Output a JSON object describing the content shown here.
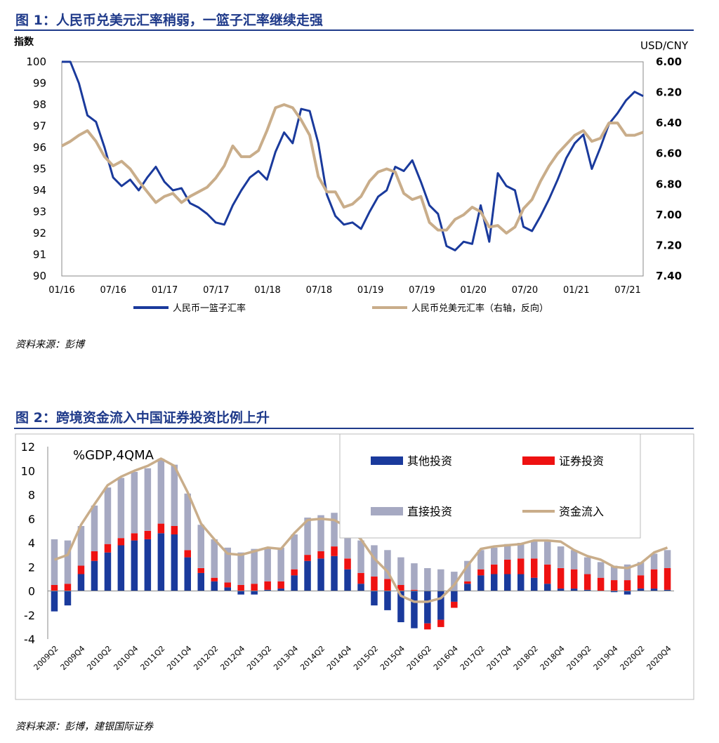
{
  "figure1": {
    "title": "图 1：人民币兑美元汇率稍弱，一篮子汇率继续走强",
    "source": "资料来源：彭博",
    "chart_data": {
      "type": "line",
      "left_axis_label": "指数",
      "right_axis_label": "USD/CNY",
      "left_ylim": [
        90,
        100
      ],
      "right_ylim": [
        6.0,
        7.4
      ],
      "right_axis_reversed": true,
      "left_ticks": [
        "100",
        "99",
        "98",
        "97",
        "96",
        "95",
        "94",
        "93",
        "92",
        "91",
        "90"
      ],
      "right_ticks": [
        "6.00",
        "6.20",
        "6.40",
        "6.60",
        "6.80",
        "7.00",
        "7.20",
        "7.40"
      ],
      "x_ticks": [
        "01/16",
        "07/16",
        "01/17",
        "07/17",
        "01/18",
        "07/18",
        "01/19",
        "07/19",
        "01/20",
        "07/20",
        "01/21",
        "07/21"
      ],
      "grid": false,
      "legend_position": "bottom",
      "series": [
        {
          "name": "人民币一篮子汇率",
          "axis": "left",
          "color": "#1a3a9c",
          "x": [
            "01/16",
            "02/16",
            "03/16",
            "04/16",
            "05/16",
            "06/16",
            "07/16",
            "08/16",
            "09/16",
            "10/16",
            "11/16",
            "12/16",
            "01/17",
            "02/17",
            "03/17",
            "04/17",
            "05/17",
            "06/17",
            "07/17",
            "08/17",
            "09/17",
            "10/17",
            "11/17",
            "12/17",
            "01/18",
            "02/18",
            "03/18",
            "04/18",
            "05/18",
            "06/18",
            "07/18",
            "08/18",
            "09/18",
            "10/18",
            "11/18",
            "12/18",
            "01/19",
            "02/19",
            "03/19",
            "04/19",
            "05/19",
            "06/19",
            "07/19",
            "08/19",
            "09/19",
            "10/19",
            "11/19",
            "12/19",
            "01/20",
            "02/20",
            "03/20",
            "04/20",
            "05/20",
            "06/20",
            "07/20",
            "08/20",
            "09/20",
            "10/20",
            "11/20",
            "12/20",
            "01/21",
            "02/21",
            "03/21",
            "04/21",
            "05/21",
            "06/21",
            "07/21",
            "08/21",
            "09/21"
          ],
          "values": [
            100.5,
            100.0,
            99.0,
            97.5,
            97.2,
            96.0,
            94.6,
            94.2,
            94.5,
            94.0,
            94.6,
            95.1,
            94.4,
            94.0,
            94.1,
            93.4,
            93.2,
            92.9,
            92.5,
            92.4,
            93.3,
            94.0,
            94.6,
            94.9,
            94.5,
            95.8,
            96.7,
            96.2,
            97.8,
            97.7,
            96.2,
            93.8,
            92.8,
            92.4,
            92.5,
            92.2,
            93.0,
            93.7,
            94.0,
            95.1,
            94.9,
            95.4,
            94.4,
            93.3,
            92.9,
            91.4,
            91.2,
            91.6,
            91.5,
            93.3,
            91.6,
            94.8,
            94.2,
            94.0,
            92.3,
            92.1,
            92.8,
            93.6,
            94.5,
            95.5,
            96.2,
            96.6,
            95.0,
            96.0,
            97.1,
            97.6,
            98.2,
            98.6,
            98.4
          ]
        },
        {
          "name": "人民币兑美元汇率（右轴，反向）",
          "axis": "right",
          "color": "#c9ad8a",
          "x": [
            "01/16",
            "02/16",
            "03/16",
            "04/16",
            "05/16",
            "06/16",
            "07/16",
            "08/16",
            "09/16",
            "10/16",
            "11/16",
            "12/16",
            "01/17",
            "02/17",
            "03/17",
            "04/17",
            "05/17",
            "06/17",
            "07/17",
            "08/17",
            "09/17",
            "10/17",
            "11/17",
            "12/17",
            "01/18",
            "02/18",
            "03/18",
            "04/18",
            "05/18",
            "06/18",
            "07/18",
            "08/18",
            "09/18",
            "10/18",
            "11/18",
            "12/18",
            "01/19",
            "02/19",
            "03/19",
            "04/19",
            "05/19",
            "06/19",
            "07/19",
            "08/19",
            "09/19",
            "10/19",
            "11/19",
            "12/19",
            "01/20",
            "02/20",
            "03/20",
            "04/20",
            "05/20",
            "06/20",
            "07/20",
            "08/20",
            "09/20",
            "10/20",
            "11/20",
            "12/20",
            "01/21",
            "02/21",
            "03/21",
            "04/21",
            "05/21",
            "06/21",
            "07/21",
            "08/21",
            "09/21"
          ],
          "values": [
            6.55,
            6.52,
            6.48,
            6.45,
            6.52,
            6.62,
            6.68,
            6.65,
            6.7,
            6.78,
            6.85,
            6.92,
            6.88,
            6.86,
            6.92,
            6.88,
            6.85,
            6.82,
            6.76,
            6.68,
            6.55,
            6.62,
            6.62,
            6.58,
            6.45,
            6.3,
            6.28,
            6.3,
            6.38,
            6.48,
            6.75,
            6.85,
            6.85,
            6.95,
            6.93,
            6.88,
            6.78,
            6.72,
            6.7,
            6.72,
            6.86,
            6.9,
            6.88,
            7.05,
            7.1,
            7.1,
            7.03,
            7.0,
            6.95,
            6.98,
            7.08,
            7.07,
            7.12,
            7.08,
            6.96,
            6.9,
            6.78,
            6.68,
            6.6,
            6.54,
            6.48,
            6.45,
            6.52,
            6.5,
            6.4,
            6.4,
            6.48,
            6.48,
            6.46
          ]
        }
      ]
    }
  },
  "figure2": {
    "title": "图 2：跨境资金流入中国证券投资比例上升",
    "source": "资料来源：彭博，建银国际证券",
    "chart_data": {
      "type": "bar",
      "stacked": true,
      "annotation": "%GDP,4QMA",
      "ylim": [
        -4,
        12
      ],
      "y_ticks": [
        "12",
        "10",
        "8",
        "6",
        "4",
        "2",
        "0",
        "-2",
        "-4"
      ],
      "grid": false,
      "legend_position": "top-right",
      "categories": [
        "2009Q2",
        "2009Q3",
        "2009Q4",
        "2010Q1",
        "2010Q2",
        "2010Q3",
        "2010Q4",
        "2011Q1",
        "2011Q2",
        "2011Q3",
        "2011Q4",
        "2012Q1",
        "2012Q2",
        "2012Q3",
        "2012Q4",
        "2013Q1",
        "2013Q2",
        "2013Q3",
        "2013Q4",
        "2014Q1",
        "2014Q2",
        "2014Q3",
        "2014Q4",
        "2015Q1",
        "2015Q2",
        "2015Q3",
        "2015Q4",
        "2016Q1",
        "2016Q2",
        "2016Q3",
        "2016Q4",
        "2017Q1",
        "2017Q2",
        "2017Q3",
        "2017Q4",
        "2018Q1",
        "2018Q2",
        "2018Q3",
        "2018Q4",
        "2019Q1",
        "2019Q2",
        "2019Q3",
        "2019Q4",
        "2020Q1",
        "2020Q2",
        "2020Q3",
        "2020Q4"
      ],
      "x_tick_labels": [
        "2009Q2",
        "2009Q4",
        "2010Q2",
        "2010Q4",
        "2011Q2",
        "2011Q4",
        "2012Q2",
        "2012Q4",
        "2013Q2",
        "2013Q4",
        "2014Q2",
        "2014Q4",
        "2015Q2",
        "2015Q4",
        "2016Q2",
        "2016Q4",
        "2017Q2",
        "2017Q4",
        "2018Q2",
        "2018Q4",
        "2019Q2",
        "2019Q4",
        "2020Q2",
        "2020Q4"
      ],
      "series": [
        {
          "name": "其他投资",
          "color": "#1a3a9c",
          "values": [
            -1.7,
            -1.2,
            1.4,
            2.5,
            3.2,
            3.8,
            4.2,
            4.3,
            4.8,
            4.7,
            2.8,
            1.5,
            0.8,
            0.3,
            -0.3,
            -0.3,
            0.1,
            0.2,
            1.3,
            2.5,
            2.7,
            2.9,
            1.8,
            0.6,
            -1.2,
            -1.6,
            -2.6,
            -3.1,
            -2.7,
            -2.4,
            -0.9,
            0.6,
            1.3,
            1.4,
            1.4,
            1.4,
            1.1,
            0.6,
            0.2,
            0.2,
            0.1,
            0.0,
            -0.1,
            -0.3,
            0.2,
            0.2,
            0.1
          ]
        },
        {
          "name": "证券投资",
          "color": "#ee1111",
          "values": [
            0.5,
            0.6,
            0.7,
            0.8,
            0.7,
            0.6,
            0.6,
            0.7,
            0.8,
            0.7,
            0.6,
            0.4,
            0.3,
            0.4,
            0.5,
            0.6,
            0.7,
            0.6,
            0.5,
            0.5,
            0.6,
            0.8,
            0.9,
            0.9,
            1.2,
            1.0,
            0.5,
            0.1,
            -0.5,
            -0.6,
            -0.5,
            0.2,
            0.5,
            0.8,
            1.2,
            1.3,
            1.6,
            1.6,
            1.7,
            1.6,
            1.3,
            1.1,
            0.9,
            0.9,
            1.1,
            1.6,
            1.8
          ]
        },
        {
          "name": "直接投资",
          "color": "#a6a9c2",
          "values": [
            3.8,
            3.6,
            3.3,
            3.8,
            4.7,
            5.0,
            5.1,
            5.2,
            5.4,
            5.1,
            4.7,
            3.6,
            3.2,
            2.9,
            2.7,
            2.9,
            2.8,
            2.8,
            2.9,
            3.1,
            3.0,
            2.8,
            2.8,
            2.7,
            2.6,
            2.4,
            2.3,
            2.2,
            1.9,
            1.8,
            1.6,
            1.7,
            1.6,
            1.4,
            1.3,
            1.3,
            1.5,
            1.9,
            1.8,
            1.6,
            1.4,
            1.3,
            1.2,
            1.3,
            1.1,
            1.3,
            1.5
          ]
        },
        {
          "name": "资金流入",
          "type": "line",
          "color": "#c9ad8a",
          "values": [
            2.6,
            3.0,
            5.5,
            7.2,
            8.8,
            9.5,
            10.0,
            10.4,
            11.0,
            10.4,
            8.2,
            5.6,
            4.3,
            3.1,
            3.0,
            3.3,
            3.6,
            3.5,
            4.8,
            5.9,
            6.0,
            5.9,
            5.3,
            4.3,
            2.7,
            1.6,
            -0.4,
            -0.9,
            -0.9,
            -0.6,
            0.5,
            2.1,
            3.5,
            3.7,
            3.8,
            3.9,
            4.2,
            4.2,
            4.1,
            3.4,
            2.9,
            2.6,
            2.0,
            1.9,
            2.3,
            3.2,
            3.6
          ]
        }
      ]
    }
  }
}
